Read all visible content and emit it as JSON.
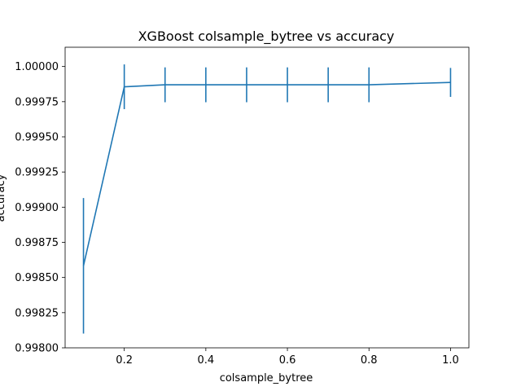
{
  "chart_data": {
    "type": "line",
    "title": "XGBoost colsample_bytree vs accuracy",
    "xlabel": "colsample_bytree",
    "ylabel": "accuracy",
    "x": [
      0.1,
      0.2,
      0.3,
      0.4,
      0.5,
      0.6,
      0.7,
      0.8,
      1.0
    ],
    "series": [
      {
        "values": [
          0.998583,
          0.999856,
          0.99987,
          0.99987,
          0.99987,
          0.99987,
          0.99987,
          0.99987,
          0.999887
        ],
        "error": [
          0.000482,
          0.000159,
          0.000124,
          0.000124,
          0.000124,
          0.000124,
          0.000124,
          0.000124,
          0.000103
        ],
        "color": "#1f77b4"
      }
    ],
    "xlim": [
      0.055,
      1.045
    ],
    "ylim": [
      0.998,
      1.000137
    ],
    "xticks": [
      0.2,
      0.4,
      0.6,
      0.8,
      1.0
    ],
    "xtick_labels": [
      "0.2",
      "0.4",
      "0.6",
      "0.8",
      "1.0"
    ],
    "yticks": [
      0.998,
      0.99825,
      0.9985,
      0.99875,
      0.999,
      0.99925,
      0.9995,
      0.99975,
      1.0
    ],
    "ytick_labels": [
      "0.99800",
      "0.99825",
      "0.99850",
      "0.99875",
      "0.99900",
      "0.99925",
      "0.99950",
      "0.99975",
      "1.00000"
    ],
    "grid": false,
    "legend": "none"
  }
}
